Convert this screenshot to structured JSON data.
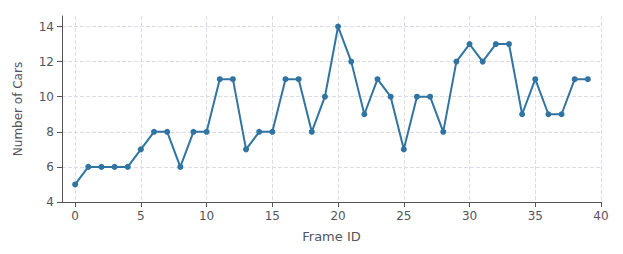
{
  "chart_data": {
    "type": "line",
    "x": [
      0,
      1,
      2,
      3,
      4,
      5,
      6,
      7,
      8,
      9,
      10,
      11,
      12,
      13,
      14,
      15,
      16,
      17,
      18,
      19,
      20,
      21,
      22,
      23,
      24,
      25,
      26,
      27,
      28,
      29,
      30,
      31,
      32,
      33,
      34,
      35,
      36,
      37,
      38,
      39
    ],
    "values": [
      5,
      6,
      6,
      6,
      6,
      7,
      8,
      8,
      6,
      8,
      8,
      11,
      11,
      7,
      8,
      8,
      11,
      11,
      8,
      10,
      14,
      12,
      9,
      11,
      10,
      7,
      10,
      10,
      8,
      12,
      13,
      12,
      13,
      13,
      9,
      11,
      9,
      9,
      11,
      11
    ],
    "xlabel": "Frame ID",
    "ylabel": "Number of Cars",
    "xlim": [
      -1,
      40
    ],
    "ylim": [
      4,
      14.6
    ],
    "xticks": [
      0,
      5,
      10,
      15,
      20,
      25,
      30,
      35,
      40
    ],
    "yticks": [
      4,
      6,
      8,
      10,
      12,
      14
    ],
    "color": "#3274a1",
    "marker": "circle",
    "grid": true
  }
}
